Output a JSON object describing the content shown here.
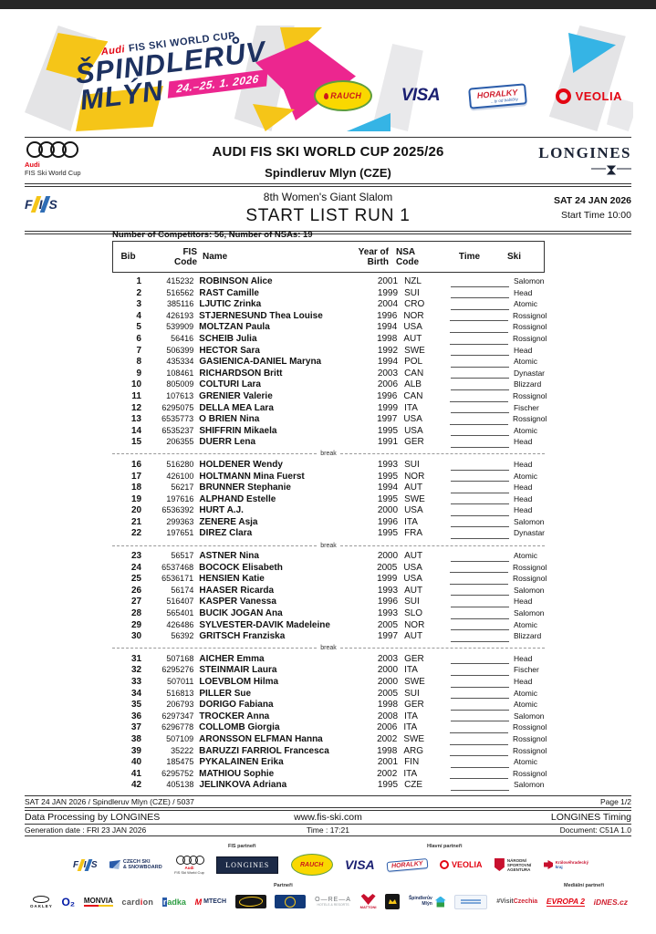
{
  "banner": {
    "brand_audi": "Audi",
    "brand_rest": "FIS SKI WORLD CUP",
    "title_line1": "ŠPINDLERŮV",
    "title_line2": "MLÝN",
    "dates": "24.–25. 1. 2026",
    "sponsors": {
      "rauch": "RAUCH",
      "visa": "VISA",
      "horalky": "HORALKY",
      "horalky_sub": "...ty od babičky",
      "veolia": "VEOLIA"
    }
  },
  "header": {
    "audi_brand": "Audi",
    "audi_sub": "FIS Ski World Cup",
    "title": "AUDI FIS SKI WORLD CUP 2025/26",
    "location": "Spindleruv Mlyn (CZE)",
    "timekeeper": "LONGINES",
    "fis_letters": {
      "f": "F",
      "i": "I",
      "s": "S"
    },
    "event": "8th Women's Giant Slalom",
    "list_title": "START LIST RUN 1",
    "date": "SAT 24 JAN 2026",
    "start_time": "Start Time 10:00"
  },
  "meta_line": "Number of Competitors: 56,  Number of NSAs: 19",
  "table": {
    "headers": {
      "bib": "Bib",
      "fis_1": "FIS",
      "fis_2": "Code",
      "name": "Name",
      "yob_1": "Year of",
      "yob_2": "Birth",
      "nsa_1": "NSA",
      "nsa_2": "Code",
      "time": "Time",
      "ski": "Ski"
    },
    "break_label": "break",
    "groups": [
      {
        "rows": [
          {
            "bib": "1",
            "code": "415232",
            "name": "ROBINSON Alice",
            "yob": "2001",
            "nsa": "NZL",
            "ski": "Salomon"
          },
          {
            "bib": "2",
            "code": "516562",
            "name": "RAST Camille",
            "yob": "1999",
            "nsa": "SUI",
            "ski": "Head"
          },
          {
            "bib": "3",
            "code": "385116",
            "name": "LJUTIC Zrinka",
            "yob": "2004",
            "nsa": "CRO",
            "ski": "Atomic"
          },
          {
            "bib": "4",
            "code": "426193",
            "name": "STJERNESUND Thea Louise",
            "yob": "1996",
            "nsa": "NOR",
            "ski": "Rossignol"
          },
          {
            "bib": "5",
            "code": "539909",
            "name": "MOLTZAN Paula",
            "yob": "1994",
            "nsa": "USA",
            "ski": "Rossignol"
          },
          {
            "bib": "6",
            "code": "56416",
            "name": "SCHEIB Julia",
            "yob": "1998",
            "nsa": "AUT",
            "ski": "Rossignol"
          },
          {
            "bib": "7",
            "code": "506399",
            "name": "HECTOR Sara",
            "yob": "1992",
            "nsa": "SWE",
            "ski": "Head"
          },
          {
            "bib": "8",
            "code": "435334",
            "name": "GASIENICA-DANIEL Maryna",
            "yob": "1994",
            "nsa": "POL",
            "ski": "Atomic"
          },
          {
            "bib": "9",
            "code": "108461",
            "name": "RICHARDSON Britt",
            "yob": "2003",
            "nsa": "CAN",
            "ski": "Dynastar"
          },
          {
            "bib": "10",
            "code": "805009",
            "name": "COLTURI Lara",
            "yob": "2006",
            "nsa": "ALB",
            "ski": "Blizzard"
          },
          {
            "bib": "11",
            "code": "107613",
            "name": "GRENIER Valerie",
            "yob": "1996",
            "nsa": "CAN",
            "ski": "Rossignol"
          },
          {
            "bib": "12",
            "code": "6295075",
            "name": "DELLA MEA Lara",
            "yob": "1999",
            "nsa": "ITA",
            "ski": "Fischer"
          },
          {
            "bib": "13",
            "code": "6535773",
            "name": "O BRIEN Nina",
            "yob": "1997",
            "nsa": "USA",
            "ski": "Rossignol"
          },
          {
            "bib": "14",
            "code": "6535237",
            "name": "SHIFFRIN Mikaela",
            "yob": "1995",
            "nsa": "USA",
            "ski": "Atomic"
          },
          {
            "bib": "15",
            "code": "206355",
            "name": "DUERR Lena",
            "yob": "1991",
            "nsa": "GER",
            "ski": "Head"
          }
        ]
      },
      {
        "rows": [
          {
            "bib": "16",
            "code": "516280",
            "name": "HOLDENER Wendy",
            "yob": "1993",
            "nsa": "SUI",
            "ski": "Head"
          },
          {
            "bib": "17",
            "code": "426100",
            "name": "HOLTMANN Mina Fuerst",
            "yob": "1995",
            "nsa": "NOR",
            "ski": "Atomic"
          },
          {
            "bib": "18",
            "code": "56217",
            "name": "BRUNNER Stephanie",
            "yob": "1994",
            "nsa": "AUT",
            "ski": "Head"
          },
          {
            "bib": "19",
            "code": "197616",
            "name": "ALPHAND Estelle",
            "yob": "1995",
            "nsa": "SWE",
            "ski": "Head"
          },
          {
            "bib": "20",
            "code": "6536392",
            "name": "HURT A.J.",
            "yob": "2000",
            "nsa": "USA",
            "ski": "Head"
          },
          {
            "bib": "21",
            "code": "299363",
            "name": "ZENERE Asja",
            "yob": "1996",
            "nsa": "ITA",
            "ski": "Salomon"
          },
          {
            "bib": "22",
            "code": "197651",
            "name": "DIREZ Clara",
            "yob": "1995",
            "nsa": "FRA",
            "ski": "Dynastar"
          }
        ]
      },
      {
        "rows": [
          {
            "bib": "23",
            "code": "56517",
            "name": "ASTNER Nina",
            "yob": "2000",
            "nsa": "AUT",
            "ski": "Atomic"
          },
          {
            "bib": "24",
            "code": "6537468",
            "name": "BOCOCK Elisabeth",
            "yob": "2005",
            "nsa": "USA",
            "ski": "Rossignol"
          },
          {
            "bib": "25",
            "code": "6536171",
            "name": "HENSIEN Katie",
            "yob": "1999",
            "nsa": "USA",
            "ski": "Rossignol"
          },
          {
            "bib": "26",
            "code": "56174",
            "name": "HAASER Ricarda",
            "yob": "1993",
            "nsa": "AUT",
            "ski": "Salomon"
          },
          {
            "bib": "27",
            "code": "516407",
            "name": "KASPER Vanessa",
            "yob": "1996",
            "nsa": "SUI",
            "ski": "Head"
          },
          {
            "bib": "28",
            "code": "565401",
            "name": "BUCIK JOGAN Ana",
            "yob": "1993",
            "nsa": "SLO",
            "ski": "Salomon"
          },
          {
            "bib": "29",
            "code": "426486",
            "name": "SYLVESTER-DAVIK Madeleine",
            "yob": "2005",
            "nsa": "NOR",
            "ski": "Atomic"
          },
          {
            "bib": "30",
            "code": "56392",
            "name": "GRITSCH Franziska",
            "yob": "1997",
            "nsa": "AUT",
            "ski": "Blizzard"
          }
        ]
      },
      {
        "rows": [
          {
            "bib": "31",
            "code": "507168",
            "name": "AICHER Emma",
            "yob": "2003",
            "nsa": "GER",
            "ski": "Head"
          },
          {
            "bib": "32",
            "code": "6295276",
            "name": "STEINMAIR Laura",
            "yob": "2000",
            "nsa": "ITA",
            "ski": "Fischer"
          },
          {
            "bib": "33",
            "code": "507011",
            "name": "LOEVBLOM Hilma",
            "yob": "2000",
            "nsa": "SWE",
            "ski": "Head"
          },
          {
            "bib": "34",
            "code": "516813",
            "name": "PILLER Sue",
            "yob": "2005",
            "nsa": "SUI",
            "ski": "Atomic"
          },
          {
            "bib": "35",
            "code": "206793",
            "name": "DORIGO Fabiana",
            "yob": "1998",
            "nsa": "GER",
            "ski": "Atomic"
          },
          {
            "bib": "36",
            "code": "6297347",
            "name": "TROCKER Anna",
            "yob": "2008",
            "nsa": "ITA",
            "ski": "Salomon"
          },
          {
            "bib": "37",
            "code": "6296778",
            "name": "COLLOMB Giorgia",
            "yob": "2006",
            "nsa": "ITA",
            "ski": "Rossignol"
          },
          {
            "bib": "38",
            "code": "507109",
            "name": "ARONSSON ELFMAN Hanna",
            "yob": "2002",
            "nsa": "SWE",
            "ski": "Rossignol"
          },
          {
            "bib": "39",
            "code": "35222",
            "name": "BARUZZI FARRIOL Francesca",
            "yob": "1998",
            "nsa": "ARG",
            "ski": "Rossignol"
          },
          {
            "bib": "40",
            "code": "185475",
            "name": "PYKALAINEN Erika",
            "yob": "2001",
            "nsa": "FIN",
            "ski": "Atomic"
          },
          {
            "bib": "41",
            "code": "6295752",
            "name": "MATHIOU Sophie",
            "yob": "2002",
            "nsa": "ITA",
            "ski": "Rossignol"
          },
          {
            "bib": "42",
            "code": "405138",
            "name": "JELINKOVA Adriana",
            "yob": "1995",
            "nsa": "CZE",
            "ski": "Salomon"
          }
        ]
      }
    ]
  },
  "footer": {
    "line1_left": "SAT 24 JAN 2026 / Spindleruv Mlyn (CZE) / 5037",
    "line1_right": "Page 1/2",
    "line2_left": "Data Processing by LONGINES",
    "line2_center": "www.fis-ski.com",
    "line2_right": "LONGINES Timing",
    "line3_left": "Generation date : FRI 23 JAN 2026",
    "line3_center": "Time : 17:21",
    "line3_right": "Document: C51A 1.0"
  },
  "partners": {
    "label_fis": "FIS partneři",
    "label_main": "Hlavní partneři",
    "label_partner": "Partneři",
    "label_media": "Mediální partneři",
    "row1": [
      {
        "label": "FIS",
        "kind": "fis"
      },
      {
        "label": "CZECH SKI|& SNOWBOARD",
        "kind": "czech"
      },
      {
        "label": "Audi|FIS Ski World Cup",
        "kind": "audi"
      },
      {
        "label": "LONGINES",
        "kind": "longines"
      },
      {
        "label": "RAUCH",
        "kind": "rauch"
      },
      {
        "label": "VISA",
        "kind": "visa"
      },
      {
        "label": "HORALKY",
        "kind": "horalky"
      },
      {
        "label": "VEOLIA",
        "kind": "veolia"
      },
      {
        "label": "NÁRODNÍ|SPORTOVNÍ|AGENTURA",
        "kind": "nsa"
      },
      {
        "label": "Královéhradecký|kraj",
        "kind": "kraj"
      }
    ],
    "row2": [
      {
        "label": "OAKLEY",
        "kind": "oakley"
      },
      {
        "label": "O₂",
        "kind": "o2"
      },
      {
        "label": "MONVIA",
        "kind": "monvia"
      },
      {
        "label": "cardion",
        "kind": "cardion"
      },
      {
        "label": "radka",
        "kind": "radka"
      },
      {
        "label": "MTECH",
        "kind": "mtech"
      },
      {
        "label": "",
        "kind": "darkoval"
      },
      {
        "label": "",
        "kind": "bluebox"
      },
      {
        "label": "O—RE—A",
        "kind": "orea"
      },
      {
        "label": "MATTONI",
        "kind": "eagle"
      },
      {
        "label": "",
        "kind": "face"
      },
      {
        "label": "Špindlerův|Mlýn",
        "kind": "spindl"
      },
      {
        "label": "",
        "kind": "lightbox"
      },
      {
        "label": "#Visit|Czechia",
        "kind": "visit"
      },
      {
        "label": "EVROPA 2",
        "kind": "evropa"
      },
      {
        "label": "iDNES.cz",
        "kind": "idnes"
      }
    ]
  }
}
